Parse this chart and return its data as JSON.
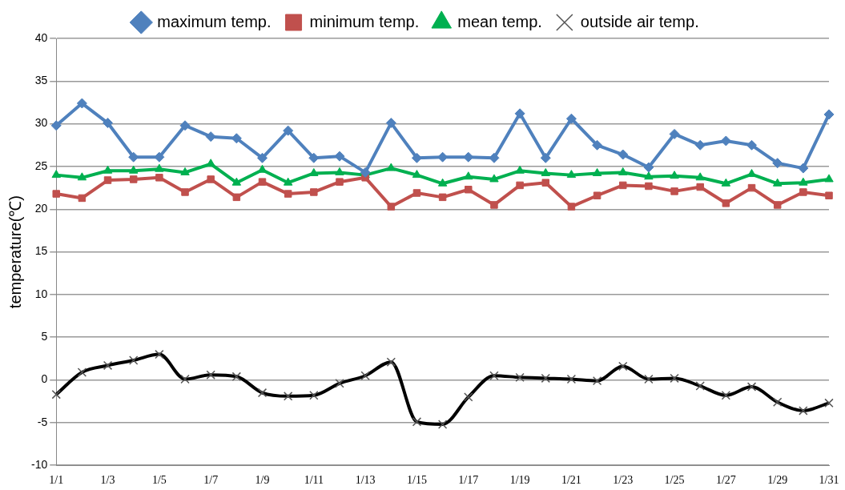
{
  "chart_data": {
    "type": "line",
    "ylabel": "temperature(℃)",
    "categories": [
      "1/1",
      null,
      "1/3",
      null,
      "1/5",
      null,
      "1/7",
      null,
      "1/9",
      null,
      "1/11",
      null,
      "1/13",
      null,
      "1/15",
      null,
      "1/17",
      null,
      "1/19",
      null,
      "1/21",
      null,
      "1/23",
      null,
      "1/25",
      null,
      "1/27",
      null,
      "1/29",
      null,
      "1/31"
    ],
    "series": [
      {
        "name": "maximum temp.",
        "color": "#4f81bd",
        "marker": "diamond",
        "values": [
          29.8,
          32.4,
          30.1,
          26.1,
          26.1,
          29.8,
          28.5,
          28.3,
          26,
          29.2,
          26,
          26.2,
          24.3,
          30.1,
          26,
          26.1,
          26.1,
          26,
          31.2,
          26,
          30.6,
          27.5,
          26.4,
          24.9,
          28.8,
          27.5,
          28,
          27.5,
          25.4,
          24.8,
          31.1
        ]
      },
      {
        "name": "minimum temp.",
        "color": "#c0504d",
        "marker": "square",
        "values": [
          21.8,
          21.3,
          23.4,
          23.5,
          23.7,
          22,
          23.5,
          21.4,
          23.2,
          21.8,
          22,
          23.2,
          23.7,
          20.3,
          21.9,
          21.4,
          22.3,
          20.5,
          22.8,
          23.1,
          20.3,
          21.6,
          22.8,
          22.7,
          22.1,
          22.6,
          20.7,
          22.5,
          20.5,
          22,
          21.6
        ]
      },
      {
        "name": "mean temp.",
        "color": "#00b050",
        "marker": "triangle",
        "values": [
          24,
          23.7,
          24.5,
          24.5,
          24.7,
          24.3,
          25.3,
          23.1,
          24.6,
          23.1,
          24.2,
          24.3,
          24,
          24.8,
          24,
          23,
          23.8,
          23.5,
          24.5,
          24.2,
          24,
          24.2,
          24.3,
          23.8,
          23.9,
          23.7,
          23,
          24.1,
          23,
          23.1,
          23.5
        ]
      },
      {
        "name": "outside air temp.",
        "color": "#000000",
        "marker": "cross",
        "values": [
          -1.7,
          0.9,
          1.7,
          2.3,
          3,
          0.1,
          0.6,
          0.4,
          -1.5,
          -1.9,
          -1.8,
          -0.4,
          0.5,
          2.1,
          -4.9,
          -5.2,
          -2,
          0.5,
          0.3,
          0.2,
          0.1,
          -0.1,
          1.6,
          0.1,
          0.2,
          -0.7,
          -1.8,
          -0.8,
          -2.6,
          -3.6,
          -2.7
        ]
      }
    ],
    "ylim": [
      -10,
      40
    ],
    "yticks": [
      -10,
      -5,
      0,
      5,
      10,
      15,
      20,
      25,
      30,
      35,
      40
    ],
    "grid": "y",
    "legend": "top",
    "line_style": "solid"
  }
}
